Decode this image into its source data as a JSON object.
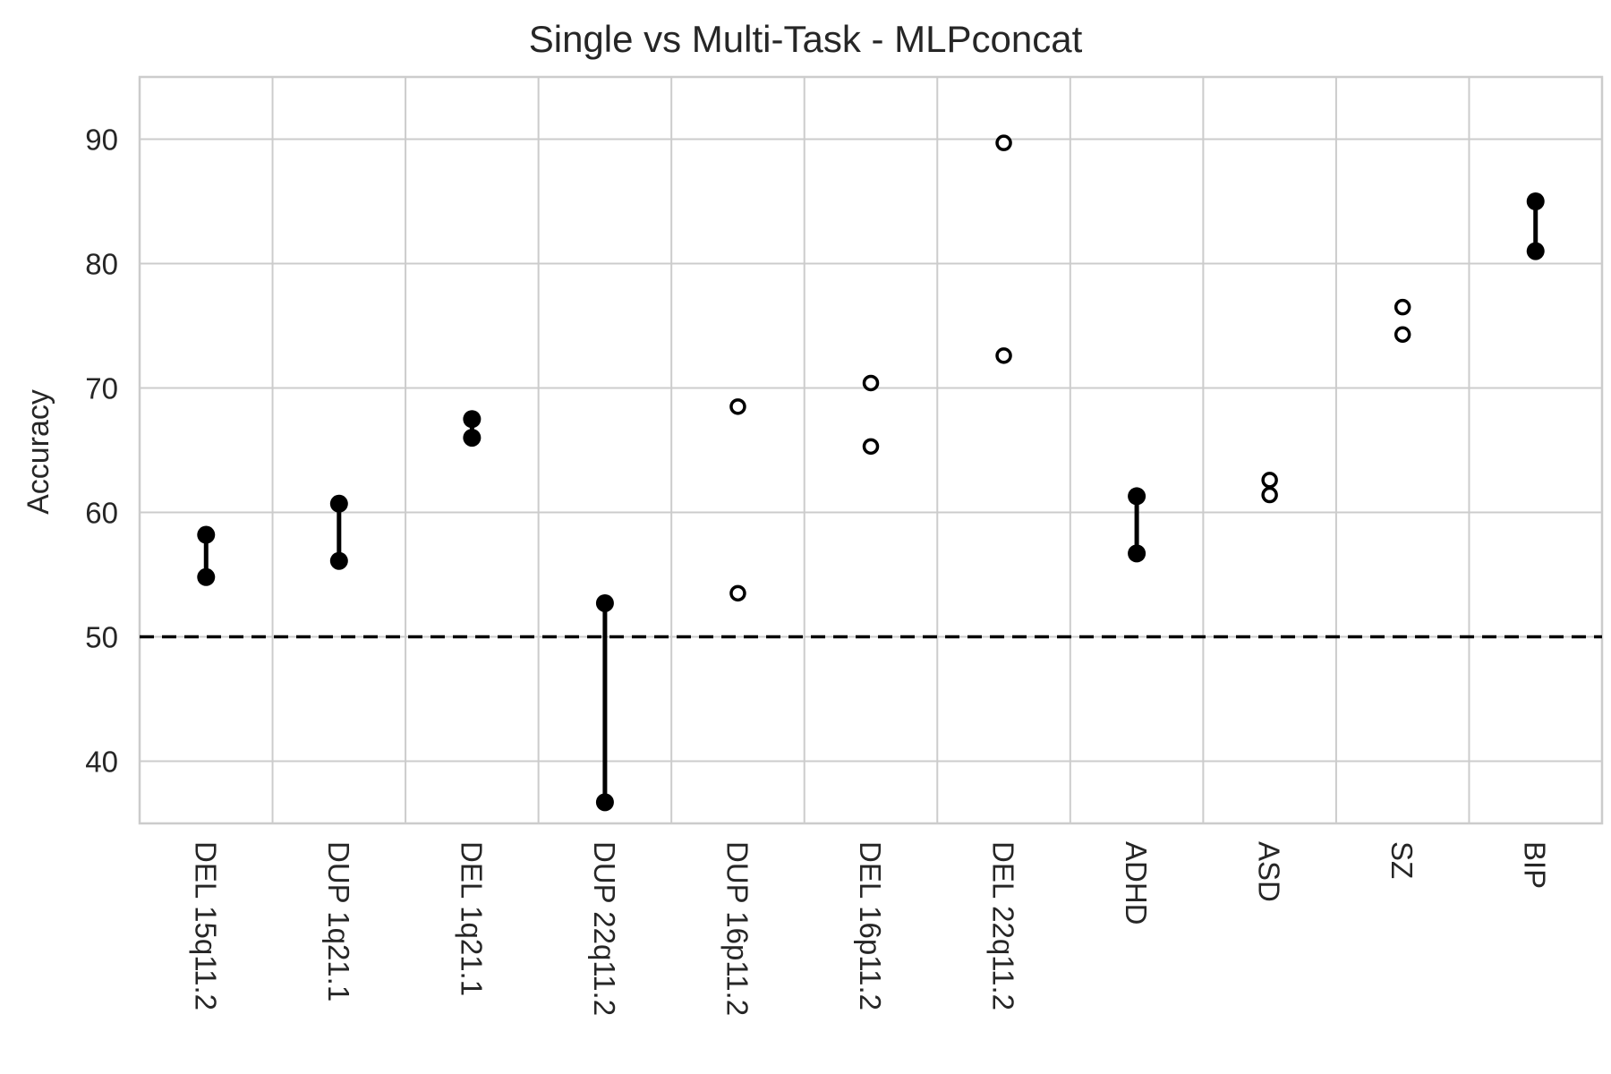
{
  "chart_data": {
    "type": "scatter",
    "title": "Single vs Multi-Task - MLPconcat",
    "xlabel": "",
    "ylabel": "Accuracy",
    "ylim": [
      35,
      95
    ],
    "yticks": [
      40,
      50,
      60,
      70,
      80,
      90
    ],
    "grid": true,
    "reference_line": {
      "y": 50,
      "style": "dashed",
      "color": "#000000"
    },
    "categories": [
      "DEL 15q11.2",
      "DUP 1q21.1",
      "DEL 1q21.1",
      "DUP 22q11.2",
      "DUP 16p11.2",
      "DEL 16p11.2",
      "DEL 22q11.2",
      "ADHD",
      "ASD",
      "SZ",
      "BIP"
    ],
    "pairs": [
      {
        "category": "DEL 15q11.2",
        "values": [
          58.2,
          54.8
        ],
        "significant": true
      },
      {
        "category": "DUP 1q21.1",
        "values": [
          60.7,
          56.1
        ],
        "significant": true
      },
      {
        "category": "DEL 1q21.1",
        "values": [
          67.5,
          66.0
        ],
        "significant": true
      },
      {
        "category": "DUP 22q11.2",
        "values": [
          52.7,
          36.7
        ],
        "significant": true
      },
      {
        "category": "DUP 16p11.2",
        "values": [
          68.5,
          53.5
        ],
        "significant": false
      },
      {
        "category": "DEL 16p11.2",
        "values": [
          70.4,
          65.3
        ],
        "significant": false
      },
      {
        "category": "DEL 22q11.2",
        "values": [
          89.7,
          72.6
        ],
        "significant": false
      },
      {
        "category": "ADHD",
        "values": [
          61.3,
          56.7
        ],
        "significant": true
      },
      {
        "category": "ASD",
        "values": [
          62.6,
          61.4
        ],
        "significant": false
      },
      {
        "category": "SZ",
        "values": [
          76.5,
          74.3
        ],
        "significant": false
      },
      {
        "category": "BIP",
        "values": [
          85.0,
          81.0
        ],
        "significant": true
      }
    ],
    "colors": {
      "marker": "#000000",
      "grid": "#cccccc",
      "text": "#262626"
    }
  }
}
